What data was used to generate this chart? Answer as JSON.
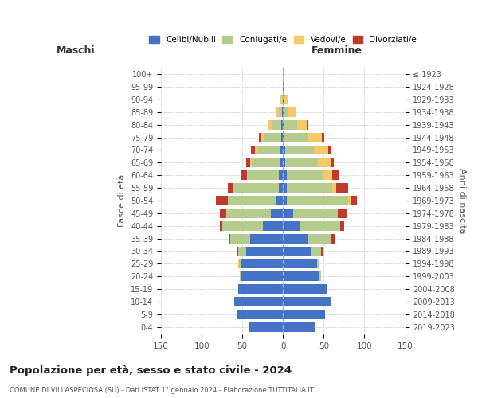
{
  "age_groups": [
    "0-4",
    "5-9",
    "10-14",
    "15-19",
    "20-24",
    "25-29",
    "30-34",
    "35-39",
    "40-44",
    "45-49",
    "50-54",
    "55-59",
    "60-64",
    "65-69",
    "70-74",
    "75-79",
    "80-84",
    "85-89",
    "90-94",
    "95-99",
    "100+"
  ],
  "birth_years": [
    "2019-2023",
    "2014-2018",
    "2009-2013",
    "2004-2008",
    "1999-2003",
    "1994-1998",
    "1989-1993",
    "1984-1988",
    "1979-1983",
    "1974-1978",
    "1969-1973",
    "1964-1968",
    "1959-1963",
    "1954-1958",
    "1949-1953",
    "1944-1948",
    "1939-1943",
    "1934-1938",
    "1929-1933",
    "1924-1928",
    "≤ 1923"
  ],
  "males": {
    "celibi": [
      42,
      57,
      60,
      55,
      52,
      52,
      45,
      40,
      25,
      15,
      8,
      5,
      5,
      3,
      3,
      2,
      2,
      1,
      0,
      0,
      0
    ],
    "coniugati": [
      0,
      0,
      0,
      0,
      1,
      2,
      10,
      25,
      50,
      55,
      60,
      55,
      38,
      35,
      30,
      22,
      12,
      4,
      1,
      0,
      0
    ],
    "vedovi": [
      0,
      0,
      0,
      0,
      0,
      1,
      0,
      0,
      0,
      0,
      0,
      1,
      1,
      2,
      2,
      4,
      5,
      3,
      2,
      0,
      0
    ],
    "divorziati": [
      0,
      0,
      0,
      0,
      0,
      0,
      1,
      2,
      3,
      8,
      15,
      7,
      7,
      5,
      4,
      2,
      0,
      0,
      0,
      0,
      0
    ]
  },
  "females": {
    "nubili": [
      40,
      52,
      58,
      55,
      45,
      42,
      35,
      30,
      20,
      12,
      5,
      5,
      5,
      3,
      3,
      2,
      2,
      2,
      1,
      1,
      0
    ],
    "coniugate": [
      0,
      0,
      0,
      0,
      2,
      3,
      12,
      28,
      50,
      55,
      75,
      55,
      45,
      40,
      35,
      28,
      15,
      5,
      1,
      0,
      0
    ],
    "vedove": [
      0,
      0,
      0,
      0,
      0,
      0,
      0,
      0,
      0,
      0,
      3,
      5,
      10,
      15,
      18,
      18,
      12,
      8,
      5,
      1,
      1
    ],
    "divorziate": [
      0,
      0,
      0,
      0,
      0,
      0,
      2,
      5,
      5,
      12,
      8,
      15,
      8,
      4,
      3,
      3,
      2,
      0,
      0,
      0,
      0
    ]
  },
  "colors": {
    "celibi": "#4472C4",
    "coniugati": "#B5CC8E",
    "vedovi": "#F5C96A",
    "divorziati": "#C0392B"
  },
  "xlim": 150,
  "title": "Popolazione per età, sesso e stato civile - 2024",
  "subtitle": "COMUNE DI VILLASPECIOSA (SU) - Dati ISTAT 1° gennaio 2024 - Elaborazione TUTTITALIA.IT",
  "xlabel_left": "Maschi",
  "xlabel_right": "Femmine",
  "ylabel": "Fasce di età",
  "ylabel_right": "Anni di nascita",
  "bg_color": "#FFFFFF",
  "grid_color": "#CCCCCC"
}
